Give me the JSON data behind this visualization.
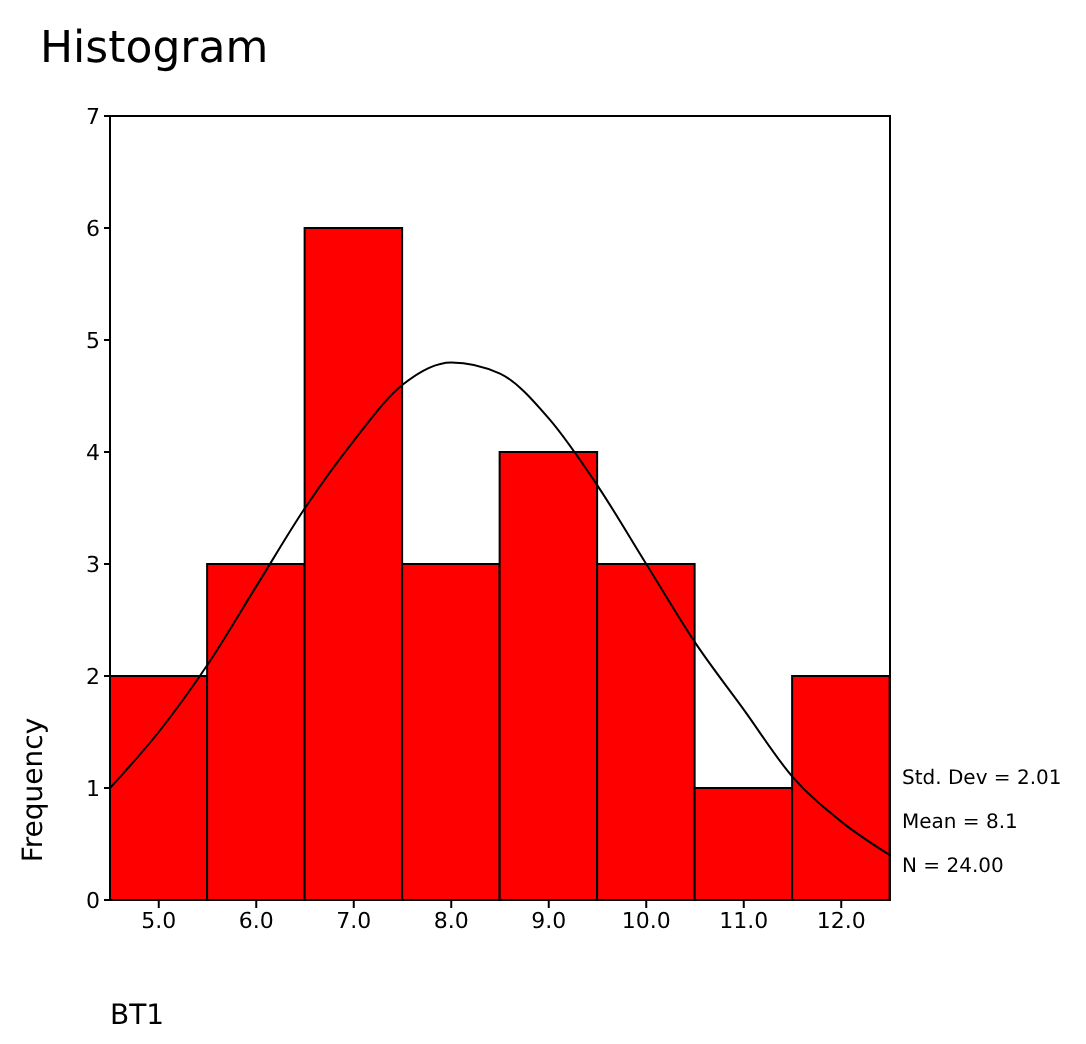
{
  "chart_data": {
    "type": "histogram",
    "title": "Histogram",
    "xlabel": "BT1",
    "ylabel": "Frequency",
    "bins": [
      4.5,
      5.5,
      6.5,
      7.5,
      8.5,
      9.5,
      10.5,
      11.5,
      12.5
    ],
    "values": [
      2,
      3,
      6,
      3,
      4,
      3,
      1,
      2
    ],
    "color": "#ff0000",
    "series": [
      {
        "type": "line",
        "color": "#000000",
        "x": [
          4.5,
          5,
          5.5,
          6,
          6.5,
          7,
          7.5,
          8,
          8.5,
          9,
          9.5,
          10,
          10.5,
          11,
          11.5,
          12,
          12.5
        ],
        "values": [
          1.0,
          1.5,
          2.1,
          2.8,
          3.5,
          4.1,
          4.6,
          4.8,
          4.7,
          4.3,
          3.7,
          3.0,
          2.3,
          1.7,
          1.1,
          0.7,
          0.4
        ]
      }
    ],
    "xlim": [
      4.5,
      12.5
    ],
    "xticks": [
      {
        "value": 5,
        "label": "5.0"
      },
      {
        "value": 6,
        "label": "6.0"
      },
      {
        "value": 7,
        "label": "7.0"
      },
      {
        "value": 8,
        "label": "8.0"
      },
      {
        "value": 9,
        "label": "9.0"
      },
      {
        "value": 10,
        "label": "10.0"
      },
      {
        "value": 11,
        "label": "11.0"
      },
      {
        "value": 12,
        "label": "12.0"
      }
    ],
    "ylim": [
      0,
      7
    ],
    "yticks": [
      0,
      1,
      2,
      3,
      4,
      5,
      6,
      7
    ],
    "annotations": [
      "Std. Dev = 2.01",
      "Mean = 8.1",
      "N = 24.00"
    ]
  }
}
